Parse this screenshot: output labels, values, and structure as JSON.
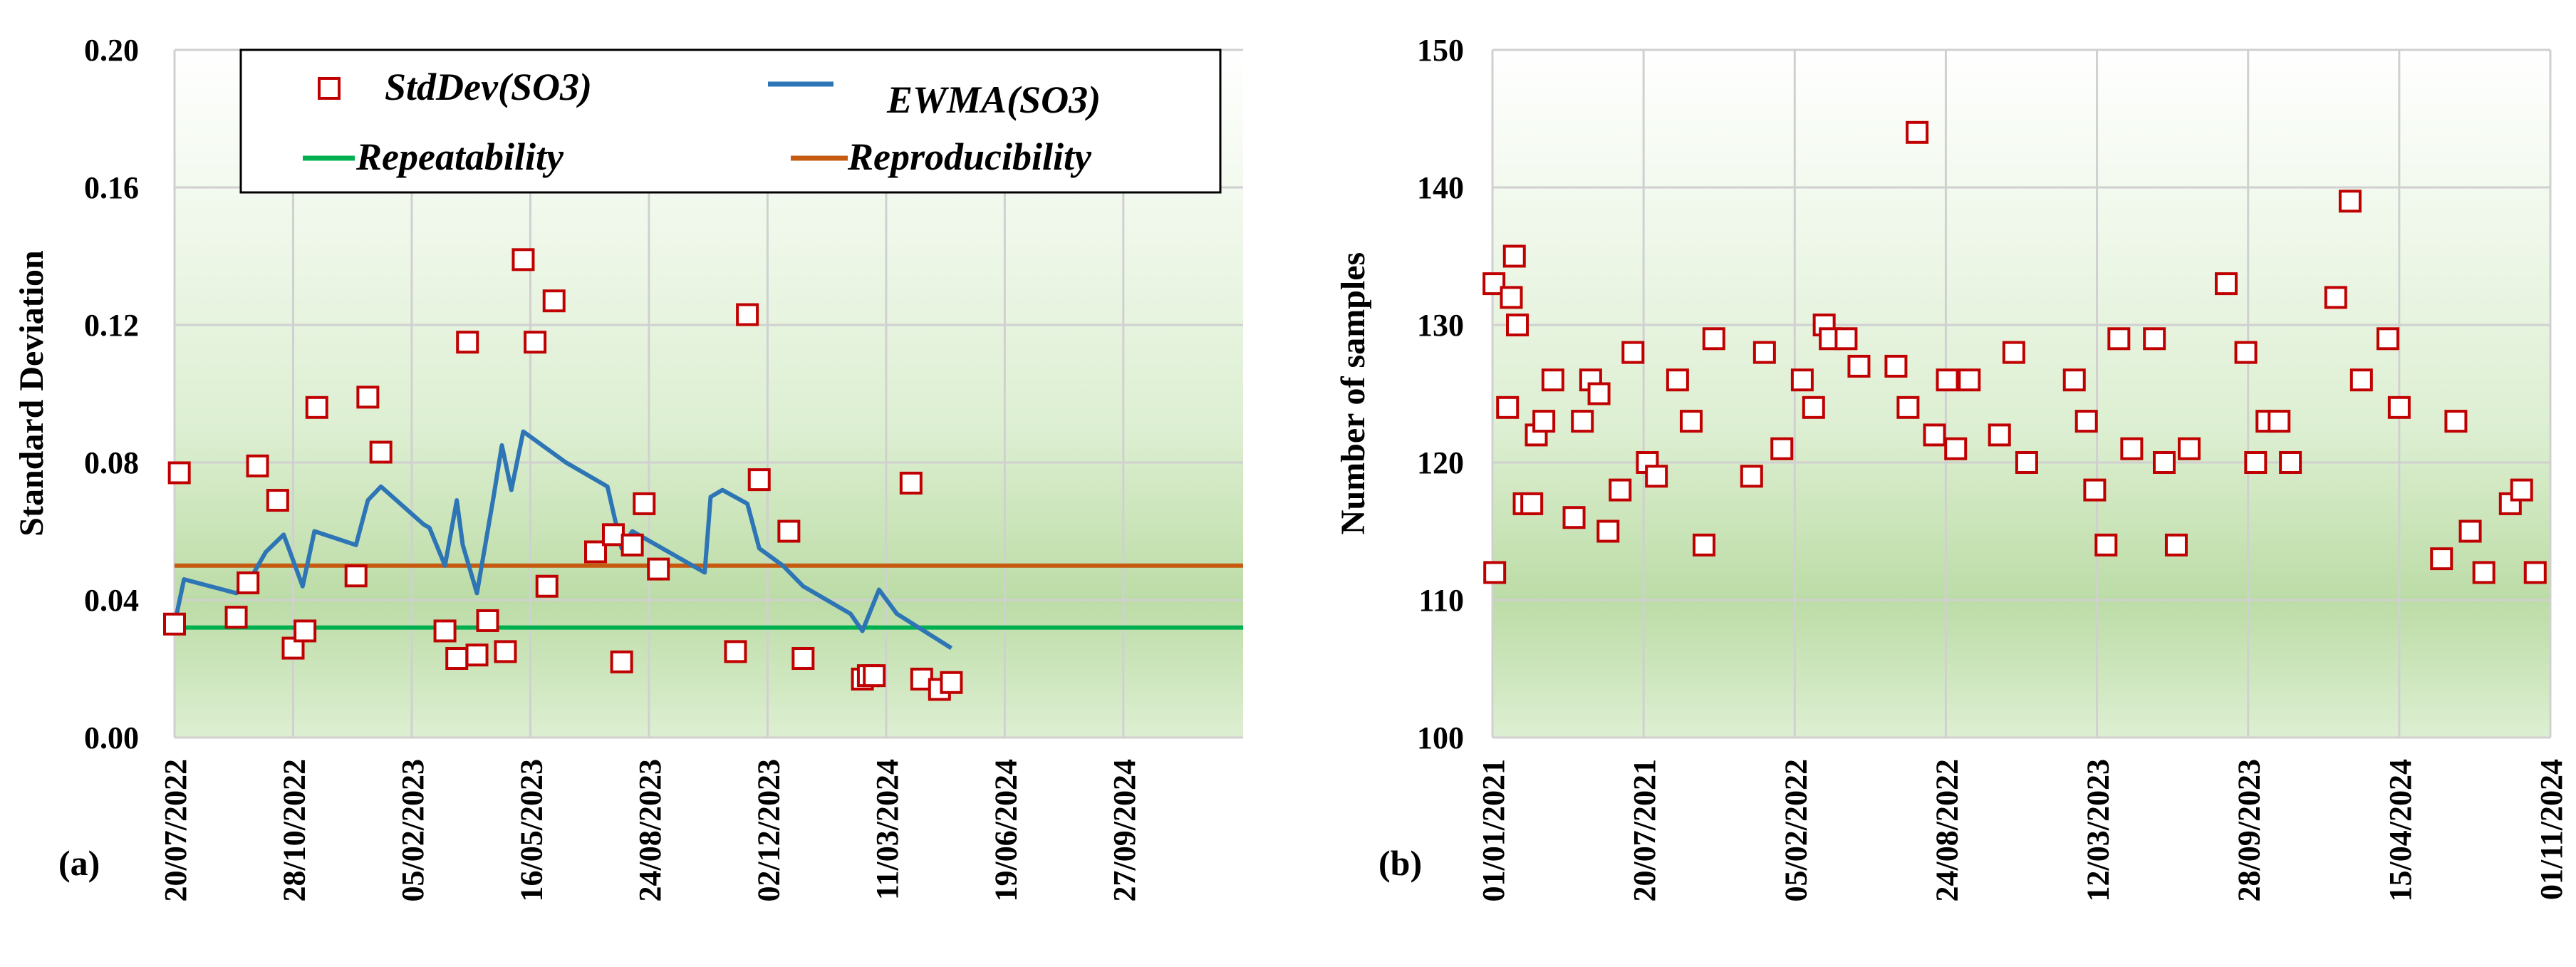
{
  "chart_data": [
    {
      "type": "scatter",
      "panel_label": "(a)",
      "ylabel": "Standard Deviation",
      "xlabel": "",
      "x_ticks": [
        "20/07/2022",
        "28/10/2022",
        "05/02/2023",
        "16/05/2023",
        "24/08/2023",
        "02/12/2023",
        "11/03/2024",
        "19/06/2024",
        "27/09/2024"
      ],
      "x_range": [
        "20/07/2022",
        "06/01/2025"
      ],
      "ylim": [
        0,
        0.2
      ],
      "y_ticks": [
        "0.00",
        "0.04",
        "0.08",
        "0.12",
        "0.16",
        "0.20"
      ],
      "grid": true,
      "legend_position": "top",
      "colors": {
        "stddev": "#C00000",
        "ewma": "#2E75B6",
        "repeatability": "#00B050",
        "reproducibility": "#C55A11",
        "grid": "#D0D0D0",
        "bg_top": "#FFFFFF",
        "bg_bottom": "#B9DBA3"
      },
      "series": [
        {
          "name": "StdDev(SO3)",
          "style": "open-square-marker",
          "points": [
            [
              "20/07/2022",
              0.033
            ],
            [
              "24/07/2022",
              0.077
            ],
            [
              "10/09/2022",
              0.035
            ],
            [
              "20/09/2022",
              0.045
            ],
            [
              "28/09/2022",
              0.079
            ],
            [
              "15/10/2022",
              0.069
            ],
            [
              "28/10/2022",
              0.026
            ],
            [
              "07/11/2022",
              0.031
            ],
            [
              "17/11/2022",
              0.096
            ],
            [
              "20/12/2022",
              0.047
            ],
            [
              "30/12/2022",
              0.099
            ],
            [
              "10/01/2023",
              0.083
            ],
            [
              "05/03/2023",
              0.031
            ],
            [
              "15/03/2023",
              0.023
            ],
            [
              "24/03/2023",
              0.115
            ],
            [
              "01/04/2023",
              0.024
            ],
            [
              "10/04/2023",
              0.034
            ],
            [
              "25/04/2023",
              0.025
            ],
            [
              "10/05/2023",
              0.139
            ],
            [
              "20/05/2023",
              0.115
            ],
            [
              "30/05/2023",
              0.044
            ],
            [
              "05/06/2023",
              0.127
            ],
            [
              "10/07/2023",
              0.054
            ],
            [
              "25/07/2023",
              0.059
            ],
            [
              "01/08/2023",
              0.022
            ],
            [
              "10/08/2023",
              0.056
            ],
            [
              "20/08/2023",
              0.068
            ],
            [
              "01/09/2023",
              0.049
            ],
            [
              "05/11/2023",
              0.025
            ],
            [
              "15/11/2023",
              0.123
            ],
            [
              "25/11/2023",
              0.075
            ],
            [
              "20/12/2023",
              0.06
            ],
            [
              "01/01/2024",
              0.023
            ],
            [
              "20/02/2024",
              0.017
            ],
            [
              "25/02/2024",
              0.018
            ],
            [
              "01/03/2024",
              0.018
            ],
            [
              "01/04/2024",
              0.074
            ],
            [
              "10/04/2024",
              0.017
            ],
            [
              "25/04/2024",
              0.014
            ],
            [
              "05/05/2024",
              0.016
            ]
          ]
        },
        {
          "name": "EWMA(SO3)",
          "style": "line",
          "points": [
            [
              "20/07/2022",
              0.033
            ],
            [
              "28/07/2022",
              0.046
            ],
            [
              "10/09/2022",
              0.042
            ],
            [
              "20/09/2022",
              0.045
            ],
            [
              "05/10/2022",
              0.054
            ],
            [
              "20/10/2022",
              0.059
            ],
            [
              "05/11/2022",
              0.044
            ],
            [
              "15/11/2022",
              0.06
            ],
            [
              "20/12/2022",
              0.056
            ],
            [
              "30/12/2022",
              0.069
            ],
            [
              "10/01/2023",
              0.073
            ],
            [
              "15/02/2023",
              0.062
            ],
            [
              "20/02/2023",
              0.061
            ],
            [
              "05/03/2023",
              0.05
            ],
            [
              "15/03/2023",
              0.069
            ],
            [
              "20/03/2023",
              0.056
            ],
            [
              "01/04/2023",
              0.042
            ],
            [
              "15/04/2023",
              0.07
            ],
            [
              "22/04/2023",
              0.085
            ],
            [
              "30/04/2023",
              0.072
            ],
            [
              "10/05/2023",
              0.089
            ],
            [
              "15/06/2023",
              0.08
            ],
            [
              "20/07/2023",
              0.073
            ],
            [
              "01/08/2023",
              0.055
            ],
            [
              "10/08/2023",
              0.06
            ],
            [
              "10/10/2023",
              0.048
            ],
            [
              "15/10/2023",
              0.07
            ],
            [
              "25/10/2023",
              0.072
            ],
            [
              "15/11/2023",
              0.068
            ],
            [
              "25/11/2023",
              0.055
            ],
            [
              "15/12/2023",
              0.05
            ],
            [
              "01/01/2024",
              0.044
            ],
            [
              "10/02/2024",
              0.036
            ],
            [
              "20/02/2024",
              0.031
            ],
            [
              "05/03/2024",
              0.043
            ],
            [
              "20/03/2024",
              0.036
            ],
            [
              "05/05/2024",
              0.026
            ]
          ]
        },
        {
          "name": "Repeatability",
          "style": "horizontal-line",
          "value": 0.032
        },
        {
          "name": "Reproducibility",
          "style": "horizontal-line",
          "value": 0.05
        }
      ],
      "legend": [
        "StdDev(SO3)",
        "EWMA(SO3)",
        "Repeatability",
        "Reproducibility"
      ]
    },
    {
      "type": "scatter",
      "panel_label": "(b)",
      "ylabel": "Number of samples",
      "xlabel": "",
      "x_ticks": [
        "01/01/2021",
        "20/07/2021",
        "05/02/2022",
        "24/08/2022",
        "12/03/2023",
        "28/09/2023",
        "15/04/2024",
        "01/11/2024"
      ],
      "x_range": [
        "01/01/2021",
        "01/11/2024"
      ],
      "ylim": [
        100,
        150
      ],
      "y_ticks": [
        "100",
        "110",
        "120",
        "130",
        "140",
        "150"
      ],
      "grid": true,
      "series": [
        {
          "name": "",
          "style": "open-square-marker",
          "values": [
            [
              0.02,
              133
            ],
            [
              0.03,
              112
            ],
            [
              0.2,
              124
            ],
            [
              0.25,
              132
            ],
            [
              0.29,
              135
            ],
            [
              0.33,
              130
            ],
            [
              0.42,
              117
            ],
            [
              0.52,
              117
            ],
            [
              0.58,
              122
            ],
            [
              0.68,
              123
            ],
            [
              0.8,
              126
            ],
            [
              1.08,
              116
            ],
            [
              1.19,
              123
            ],
            [
              1.3,
              126
            ],
            [
              1.41,
              125
            ],
            [
              1.53,
              115
            ],
            [
              1.69,
              118
            ],
            [
              1.86,
              128
            ],
            [
              2.05,
              120
            ],
            [
              2.17,
              119
            ],
            [
              2.45,
              126
            ],
            [
              2.63,
              123
            ],
            [
              2.8,
              114
            ],
            [
              2.93,
              129
            ],
            [
              3.43,
              119
            ],
            [
              3.6,
              128
            ],
            [
              3.83,
              121
            ],
            [
              4.1,
              126
            ],
            [
              4.25,
              124
            ],
            [
              4.39,
              130
            ],
            [
              4.47,
              129
            ],
            [
              4.68,
              129
            ],
            [
              4.85,
              127
            ],
            [
              5.34,
              127
            ],
            [
              5.5,
              124
            ],
            [
              5.62,
              144
            ],
            [
              5.85,
              122
            ],
            [
              6.02,
              126
            ],
            [
              6.13,
              121
            ],
            [
              6.31,
              126
            ],
            [
              6.71,
              122
            ],
            [
              6.9,
              128
            ],
            [
              7.07,
              120
            ],
            [
              7.7,
              126
            ],
            [
              7.86,
              123
            ],
            [
              7.97,
              118
            ],
            [
              8.12,
              114
            ],
            [
              8.29,
              129
            ],
            [
              8.46,
              121
            ],
            [
              8.76,
              129
            ],
            [
              8.89,
              120
            ],
            [
              9.05,
              114
            ],
            [
              9.22,
              121
            ],
            [
              9.71,
              133
            ],
            [
              9.97,
              128
            ],
            [
              10.1,
              120
            ],
            [
              10.25,
              123
            ],
            [
              10.41,
              123
            ],
            [
              10.56,
              120
            ],
            [
              11.16,
              132
            ],
            [
              11.35,
              139
            ],
            [
              11.5,
              126
            ],
            [
              11.85,
              129
            ],
            [
              12.0,
              124
            ],
            [
              12.56,
              113
            ],
            [
              12.75,
              123
            ],
            [
              12.94,
              115
            ],
            [
              13.12,
              112
            ],
            [
              13.47,
              117
            ],
            [
              13.62,
              118
            ],
            [
              13.8,
              112
            ]
          ]
        }
      ]
    }
  ]
}
